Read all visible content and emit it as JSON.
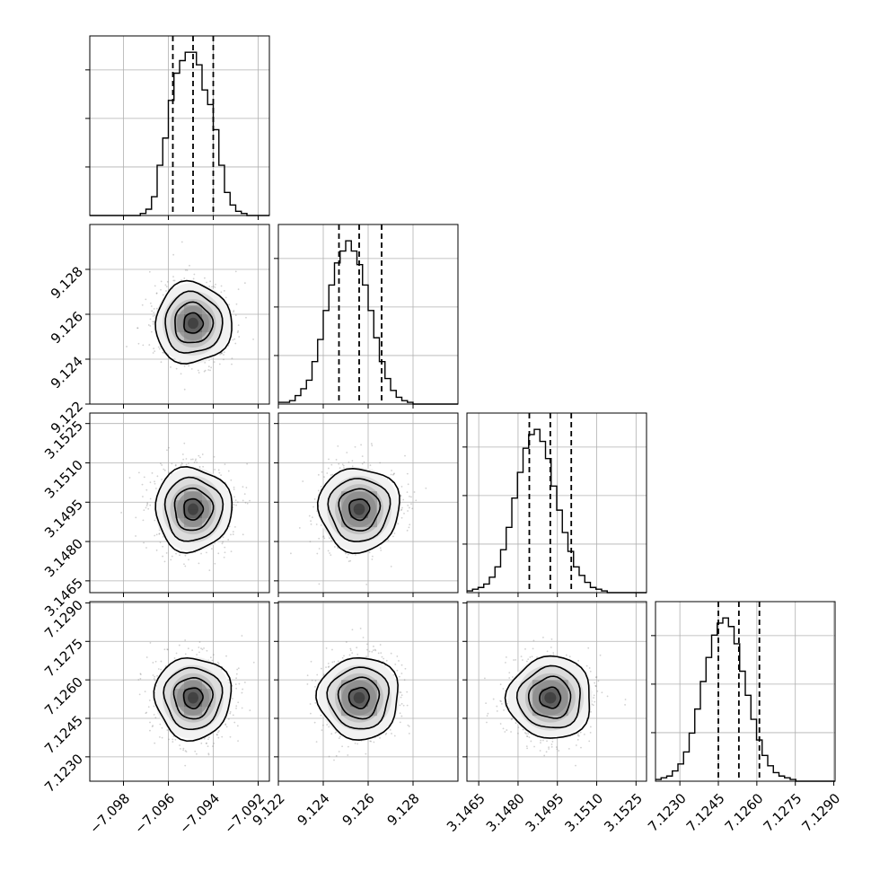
{
  "chart_data": {
    "type": "corner",
    "grid": true,
    "parameters": [
      {
        "range": [
          -7.0995,
          -7.0915
        ],
        "ticks": [
          -7.098,
          -7.096,
          -7.094,
          -7.092
        ],
        "tick_labels": [
          "−7.098",
          "−7.096",
          "−7.094",
          "−7.092"
        ],
        "quantiles": [
          -7.0958,
          -7.0949,
          -7.094
        ],
        "center": -7.0949,
        "sigma": 0.00085,
        "histogram": {
          "bin_edges": [
            -7.0995,
            -7.09925,
            -7.099,
            -7.09875,
            -7.0985,
            -7.09825,
            -7.098,
            -7.09775,
            -7.0975,
            -7.09725,
            -7.097,
            -7.09675,
            -7.0965,
            -7.09625,
            -7.096,
            -7.09575,
            -7.0955,
            -7.09525,
            -7.095,
            -7.09475,
            -7.0945,
            -7.09425,
            -7.094,
            -7.09375,
            -7.0935,
            -7.09325,
            -7.093,
            -7.09275,
            -7.0925,
            -7.09225,
            -7.092,
            -7.09175,
            -7.0915
          ],
          "counts": [
            0,
            0,
            0,
            0,
            0,
            0,
            0,
            0,
            0,
            1,
            3,
            9,
            24,
            37,
            55,
            68,
            74,
            78,
            78,
            72,
            60,
            53,
            41,
            24,
            11,
            5,
            2,
            1,
            0,
            0,
            0,
            0
          ]
        }
      },
      {
        "range": [
          9.122,
          9.13
        ],
        "ticks": [
          9.122,
          9.124,
          9.126,
          9.128
        ],
        "tick_labels": [
          "9.122",
          "9.124",
          "9.126",
          "9.128"
        ],
        "quantiles": [
          9.1247,
          9.1256,
          9.1266
        ],
        "center": 9.1256,
        "sigma": 0.0009,
        "histogram": {
          "bin_edges": [
            9.122,
            9.12225,
            9.1225,
            9.12275,
            9.123,
            9.12325,
            9.1235,
            9.12375,
            9.124,
            9.12425,
            9.1245,
            9.12475,
            9.125,
            9.12525,
            9.1255,
            9.12575,
            9.126,
            9.12625,
            9.1265,
            9.12675,
            9.127,
            9.12725,
            9.1275,
            9.12775,
            9.128,
            9.12825,
            9.1285,
            9.12875,
            9.129,
            9.12925,
            9.1295,
            9.12975,
            9.13
          ],
          "counts": [
            1,
            1,
            2,
            5,
            9,
            14,
            25,
            38,
            55,
            70,
            83,
            90,
            96,
            90,
            82,
            70,
            55,
            39,
            25,
            15,
            8,
            4,
            2,
            1,
            0,
            0,
            0,
            0,
            0,
            0,
            0,
            0
          ]
        }
      },
      {
        "range": [
          3.14605,
          3.1529
        ],
        "ticks": [
          3.1465,
          3.148,
          3.1495,
          3.151,
          3.1525
        ],
        "tick_labels": [
          "3.1465",
          "3.1480",
          "3.1495",
          "3.1510",
          "3.1525"
        ],
        "quantiles": [
          3.14843,
          3.14923,
          3.15003
        ],
        "center": 3.14923,
        "sigma": 0.0008,
        "histogram": {
          "bin_edges": [
            3.14605,
            3.146264,
            3.146478,
            3.146692,
            3.146906,
            3.14712,
            3.147334,
            3.147548,
            3.147763,
            3.147977,
            3.148191,
            3.148405,
            3.148619,
            3.148833,
            3.149047,
            3.149261,
            3.149475,
            3.149689,
            3.149903,
            3.150117,
            3.150331,
            3.150545,
            3.150759,
            3.150973,
            3.151188,
            3.151402,
            3.151616,
            3.15183,
            3.152044,
            3.152258,
            3.152472,
            3.152686,
            3.1529
          ],
          "counts": [
            1,
            2,
            3,
            5,
            9,
            15,
            25,
            38,
            55,
            70,
            84,
            92,
            95,
            88,
            78,
            62,
            48,
            35,
            24,
            15,
            10,
            6,
            3,
            2,
            1,
            0,
            0,
            0,
            0,
            0,
            0,
            0
          ]
        }
      },
      {
        "range": [
          7.12205,
          7.12905
        ],
        "ticks": [
          7.123,
          7.1245,
          7.126,
          7.1275,
          7.129
        ],
        "tick_labels": [
          "7.1230",
          "7.1245",
          "7.1260",
          "7.1275",
          "7.1290"
        ],
        "quantiles": [
          7.1245,
          7.1253,
          7.1261
        ],
        "center": 7.1253,
        "sigma": 0.0008,
        "histogram": {
          "bin_edges": [
            7.12205,
            7.122269,
            7.122488,
            7.122706,
            7.122925,
            7.123144,
            7.123363,
            7.123581,
            7.1238,
            7.124019,
            7.124238,
            7.124456,
            7.124675,
            7.124894,
            7.125113,
            7.125331,
            7.12555,
            7.125769,
            7.125988,
            7.126206,
            7.126425,
            7.126644,
            7.126863,
            7.127081,
            7.1273,
            7.127519,
            7.127738,
            7.127956,
            7.128175,
            7.128394,
            7.128613,
            7.128831,
            7.12905
          ],
          "counts": [
            1,
            2,
            3,
            6,
            10,
            17,
            28,
            42,
            58,
            72,
            85,
            92,
            95,
            90,
            80,
            64,
            50,
            36,
            24,
            15,
            9,
            5,
            3,
            2,
            1,
            0,
            0,
            0,
            0,
            0,
            0,
            0
          ]
        }
      }
    ],
    "contour_levels_sigma": [
      0.5,
      1.0,
      1.5,
      2.0
    ]
  }
}
